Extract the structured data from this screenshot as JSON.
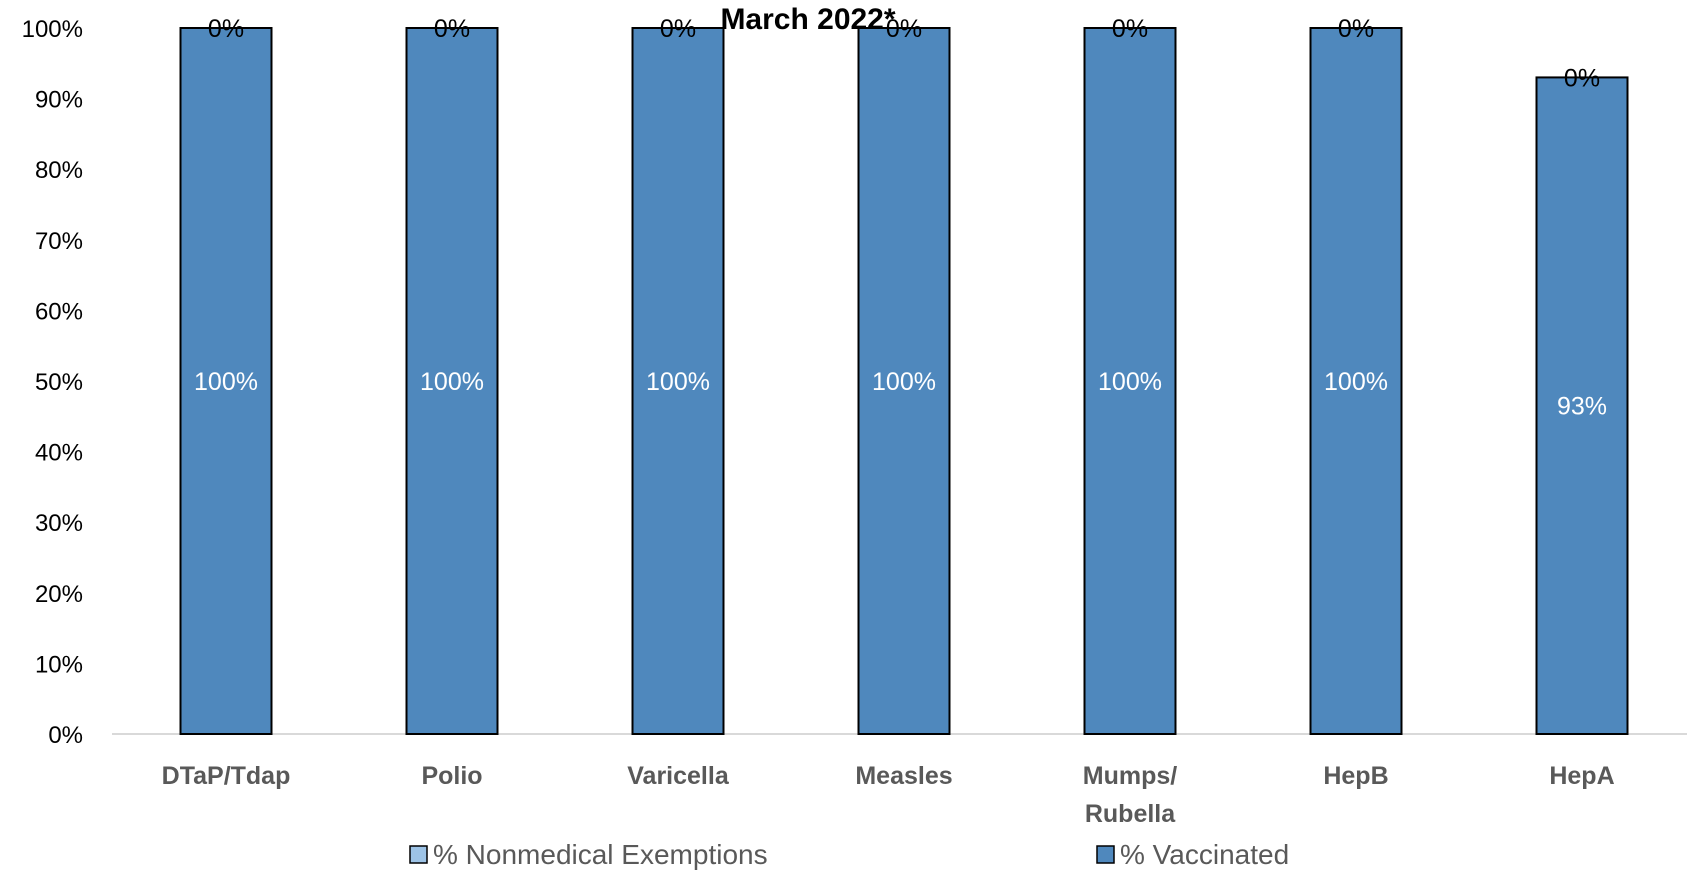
{
  "chart_data": {
    "type": "bar",
    "stacked": true,
    "title": "March 2022*",
    "xlabel": "",
    "ylabel": "",
    "ylim": [
      0,
      100
    ],
    "yticks": [
      "0%",
      "10%",
      "20%",
      "30%",
      "40%",
      "50%",
      "60%",
      "70%",
      "80%",
      "90%",
      "100%"
    ],
    "categories": [
      "DTaP/Tdap",
      "Polio",
      "Varicella",
      "Measles",
      "Mumps/\nRubella",
      "HepB",
      "HepA"
    ],
    "series": [
      {
        "name": "% Nonmedical Exemptions",
        "color": "#9dc3e6",
        "values": [
          0,
          0,
          0,
          0,
          0,
          0,
          0
        ],
        "labels": [
          "0%",
          "0%",
          "0%",
          "0%",
          "0%",
          "0%",
          "0%"
        ]
      },
      {
        "name": "% Vaccinated",
        "color": "#4f88bd",
        "values": [
          100,
          100,
          100,
          100,
          100,
          100,
          93
        ],
        "labels": [
          "100%",
          "100%",
          "100%",
          "100%",
          "100%",
          "100%",
          "93%"
        ]
      }
    ],
    "grid": false,
    "legend_position": "bottom"
  }
}
